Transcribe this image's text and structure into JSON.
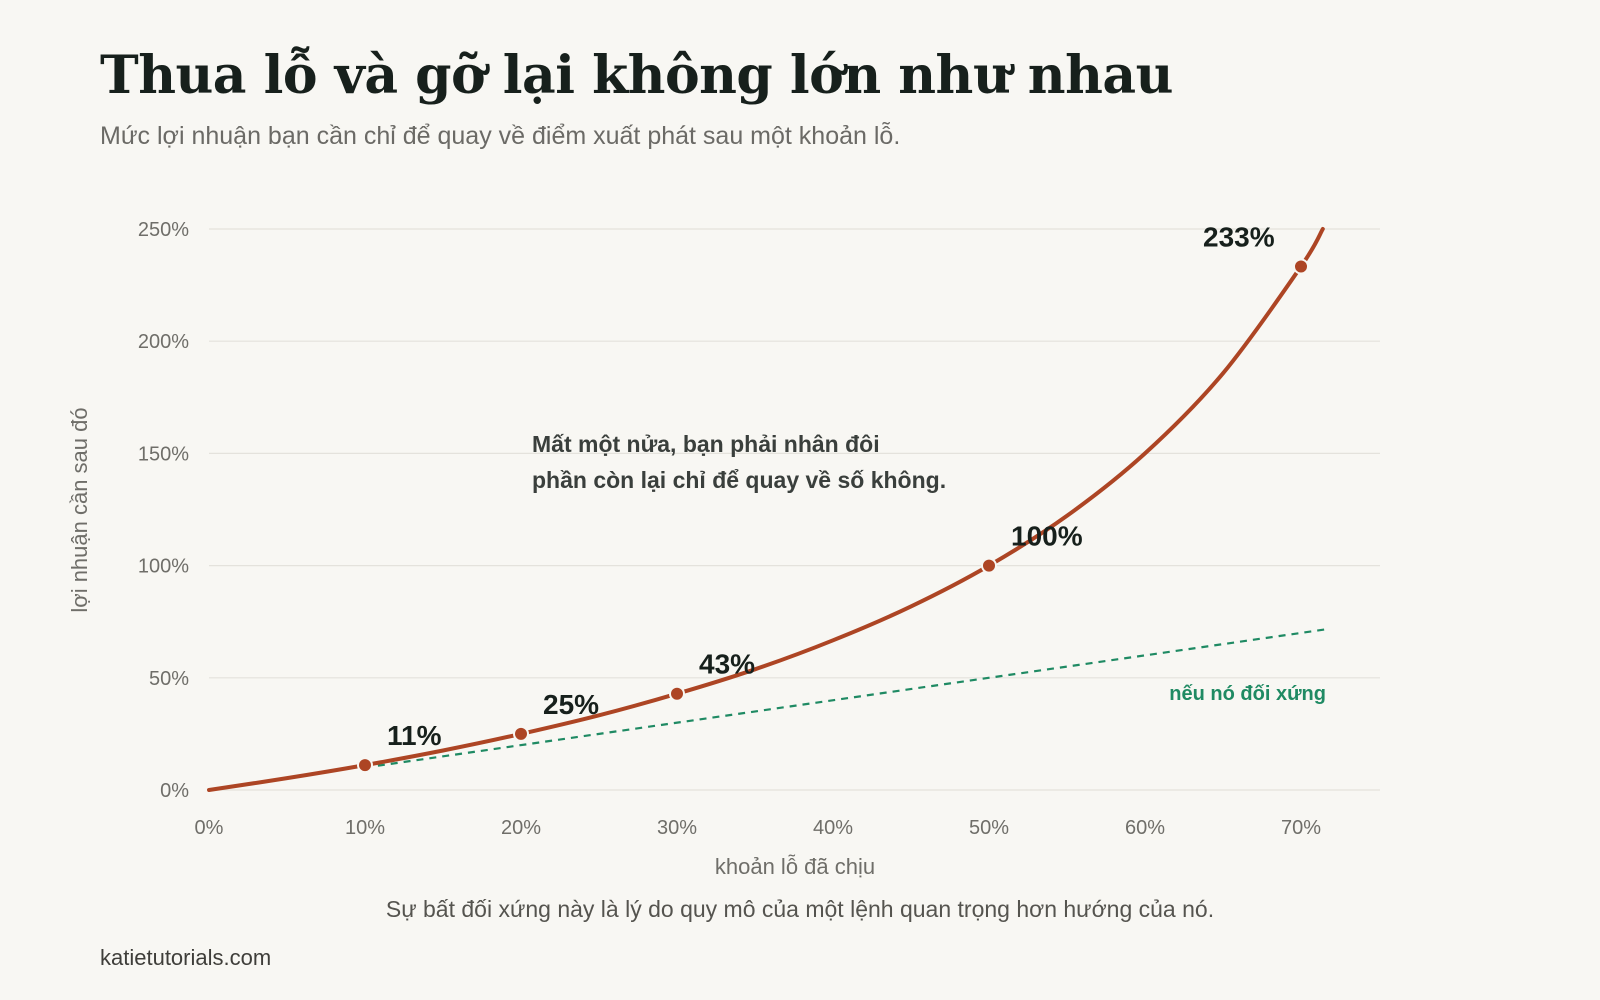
{
  "header": {
    "title": "Thua lỗ và gỡ lại không lớn như nhau",
    "subtitle": "Mức lợi nhuận bạn cần chỉ để quay về điểm xuất phát sau một khoản lỗ."
  },
  "chart_data": {
    "type": "line",
    "xlabel": "khoản lỗ đã chịu",
    "ylabel": "lợi nhuận cần sau đó",
    "xlim": [
      0,
      75
    ],
    "ylim": [
      0,
      250
    ],
    "x_ticks": [
      0,
      10,
      20,
      30,
      40,
      50,
      60,
      70
    ],
    "x_tick_labels": [
      "0%",
      "10%",
      "20%",
      "30%",
      "40%",
      "50%",
      "60%",
      "70%"
    ],
    "y_ticks": [
      0,
      50,
      100,
      150,
      200,
      250
    ],
    "y_tick_labels": [
      "0%",
      "50%",
      "100%",
      "150%",
      "200%",
      "250%"
    ],
    "grid": "horizontal",
    "series": [
      {
        "role": "required-gain-curve",
        "color": "#ad4524",
        "x": [
          0,
          5,
          10,
          15,
          20,
          25,
          30,
          35,
          40,
          45,
          50,
          55,
          60,
          65,
          70,
          71.4
        ],
        "y": [
          0,
          5.3,
          11.1,
          17.6,
          25,
          33.3,
          42.9,
          53.8,
          66.7,
          81.8,
          100,
          122.2,
          150,
          185.7,
          233.3,
          250
        ]
      },
      {
        "name": "nếu nó đối xứng",
        "role": "symmetric-reference",
        "color": "#1f8a63",
        "style": "dashed",
        "x": [
          10,
          71.8
        ],
        "y": [
          10,
          71.8
        ]
      }
    ],
    "highlighted_points": [
      {
        "x": 10,
        "y": 11.1,
        "label": "11%"
      },
      {
        "x": 20,
        "y": 25,
        "label": "25%"
      },
      {
        "x": 30,
        "y": 42.9,
        "label": "43%"
      },
      {
        "x": 50,
        "y": 100,
        "label": "100%"
      },
      {
        "x": 70,
        "y": 233.3,
        "label": "233%"
      }
    ],
    "annotation": {
      "lines": [
        "Mất một nửa, bạn phải nhân đôi",
        "phần còn lại chỉ để quay về số không."
      ]
    },
    "colors": {
      "curve": "#ad4524",
      "reference": "#1f8a63",
      "grid": "#e4e2dc"
    }
  },
  "footer": {
    "caption": "Sự bất đối xứng này là lý do quy mô của một lệnh quan trọng hơn hướng của nó.",
    "source": "katietutorials.com"
  }
}
